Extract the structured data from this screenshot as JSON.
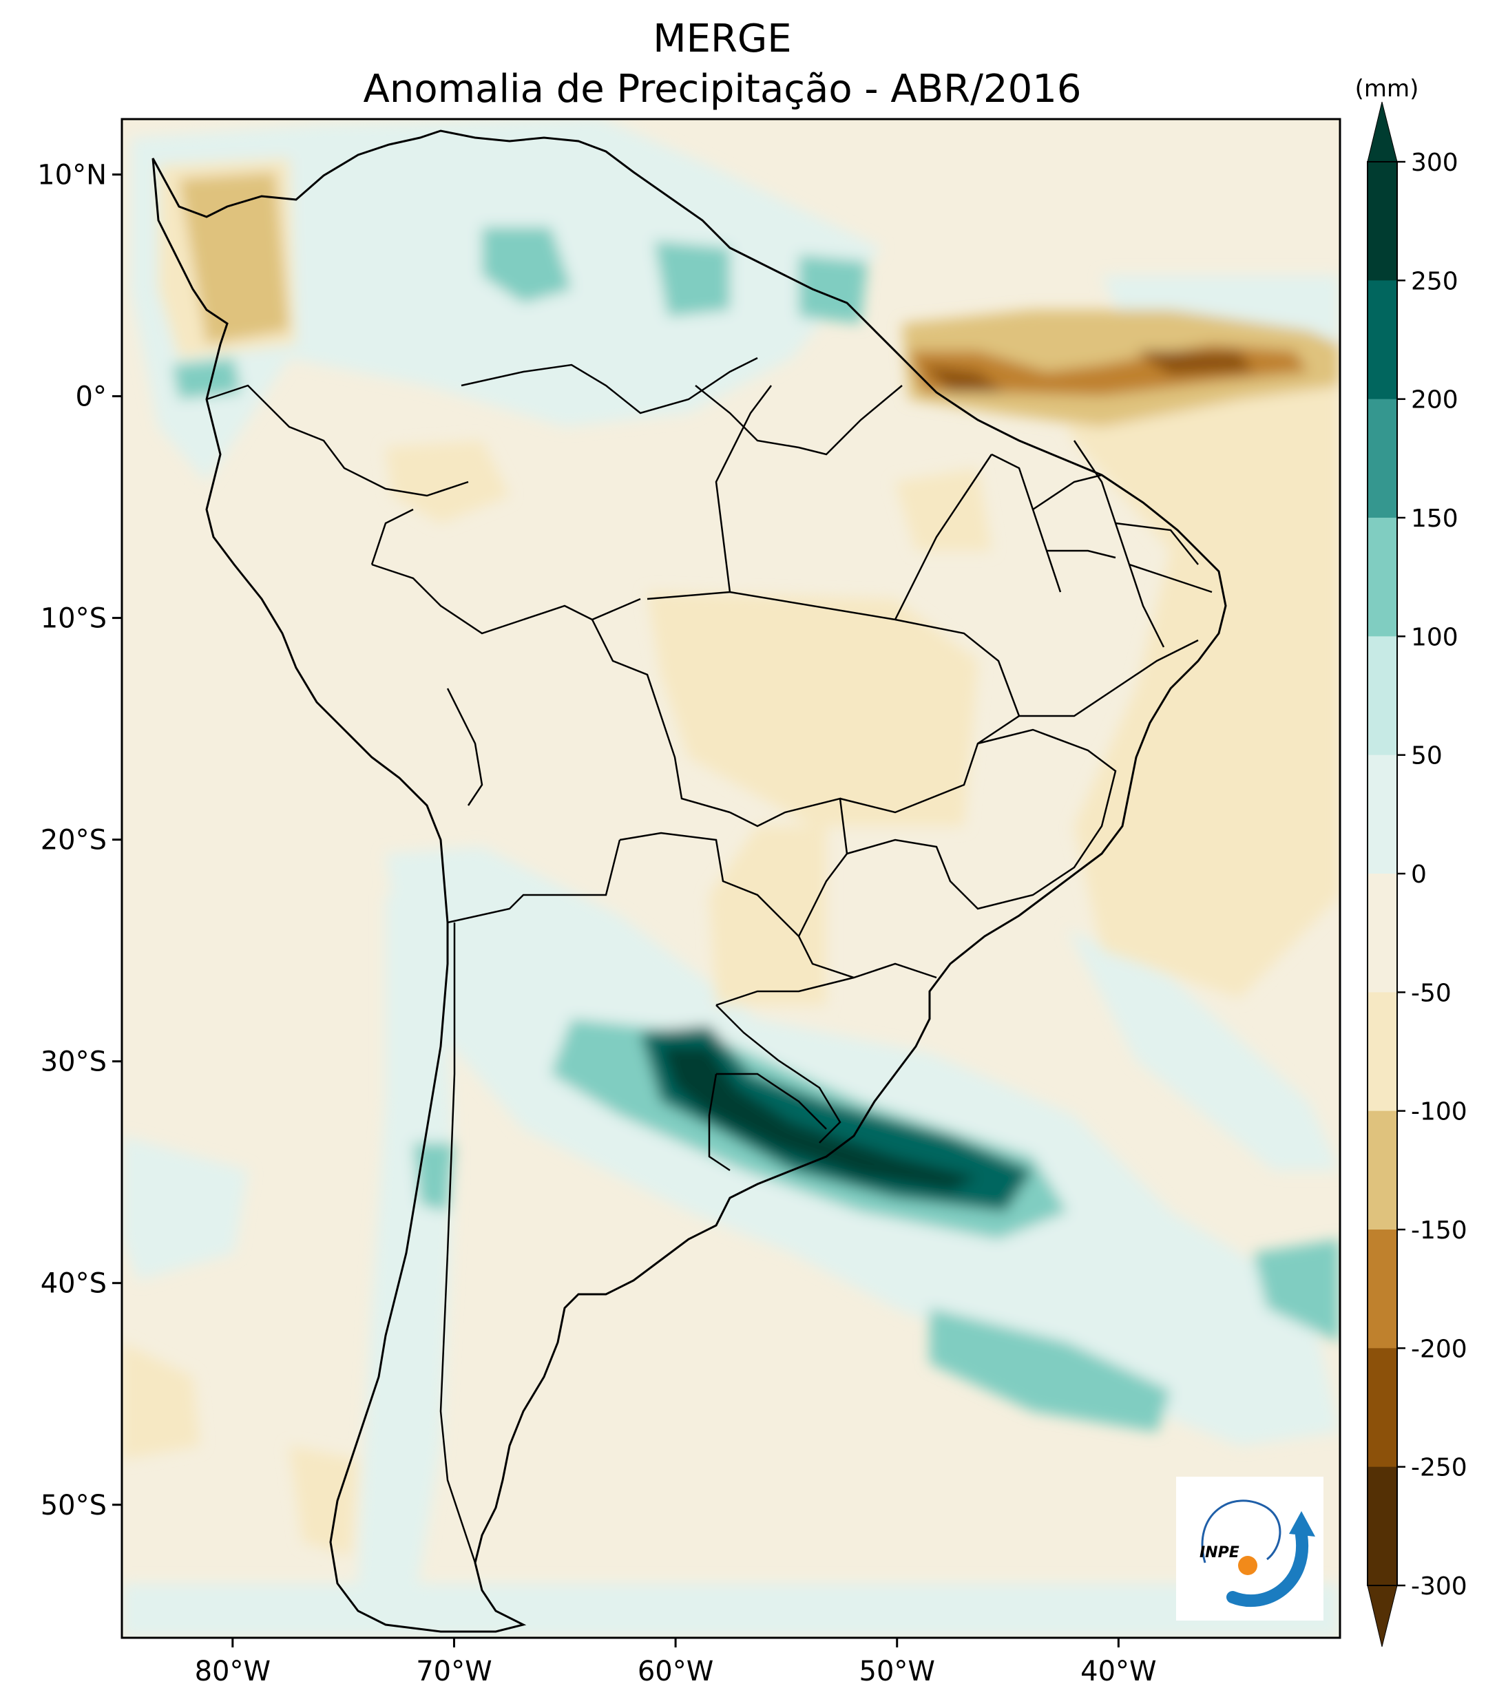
{
  "title": {
    "line1": "MERGE",
    "line2": "Anomalia de Precipitação - ABR/2016"
  },
  "axes": {
    "lat_labels": [
      "10°N",
      "0°",
      "10°S",
      "20°S",
      "30°S",
      "40°S",
      "50°S"
    ],
    "lon_labels": [
      "80°W",
      "70°W",
      "60°W",
      "50°W",
      "40°W"
    ],
    "lat_range": [
      -56,
      12.5
    ],
    "lon_range": [
      -85,
      -30
    ]
  },
  "colorbar": {
    "units": "(mm)",
    "levels": [
      "300",
      "250",
      "200",
      "150",
      "100",
      "50",
      "0",
      "-50",
      "-100",
      "-150",
      "-200",
      "-250",
      "-300"
    ],
    "colors": [
      "#003c30",
      "#01665e",
      "#35978f",
      "#80cdc1",
      "#c7eae5",
      "#e2f2ee",
      "#f5efde",
      "#f6e8c3",
      "#dfc27d",
      "#bf812d",
      "#8c510a",
      "#543005"
    ]
  },
  "logo": {
    "text": "INPE",
    "icon": "inpe-logo-icon"
  }
}
